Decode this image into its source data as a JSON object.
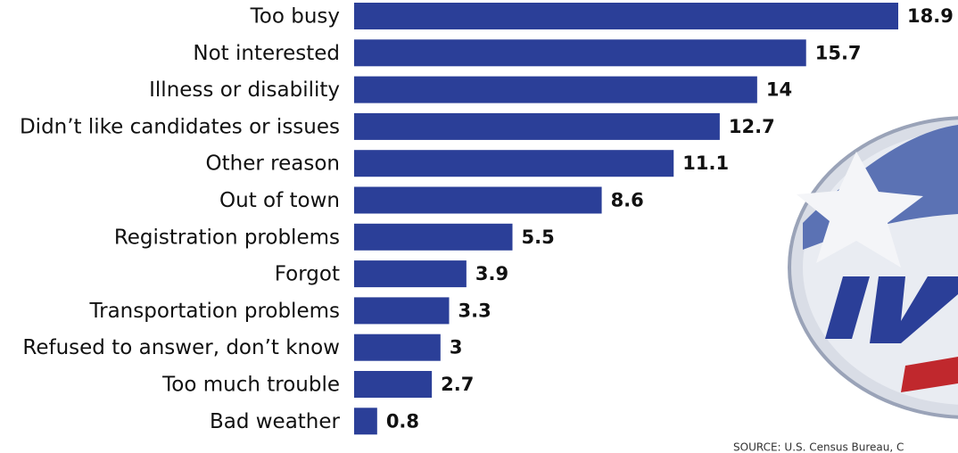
{
  "chart_data": {
    "type": "bar",
    "orientation": "horizontal",
    "categories": [
      "Too busy",
      "Not interested",
      "Illness or disability",
      "Didn’t like candidates or issues",
      "Other reason",
      "Out of town",
      "Registration problems",
      "Forgot",
      "Transportation problems",
      "Refused to answer, don’t know",
      "Too much trouble",
      "Bad weather"
    ],
    "values": [
      18.9,
      15.7,
      14,
      12.7,
      11.1,
      8.6,
      5.5,
      3.9,
      3.3,
      3,
      2.7,
      0.8
    ],
    "color": "#2b3f98",
    "source": "SOURCE: U.S. Census Bureau, C"
  }
}
